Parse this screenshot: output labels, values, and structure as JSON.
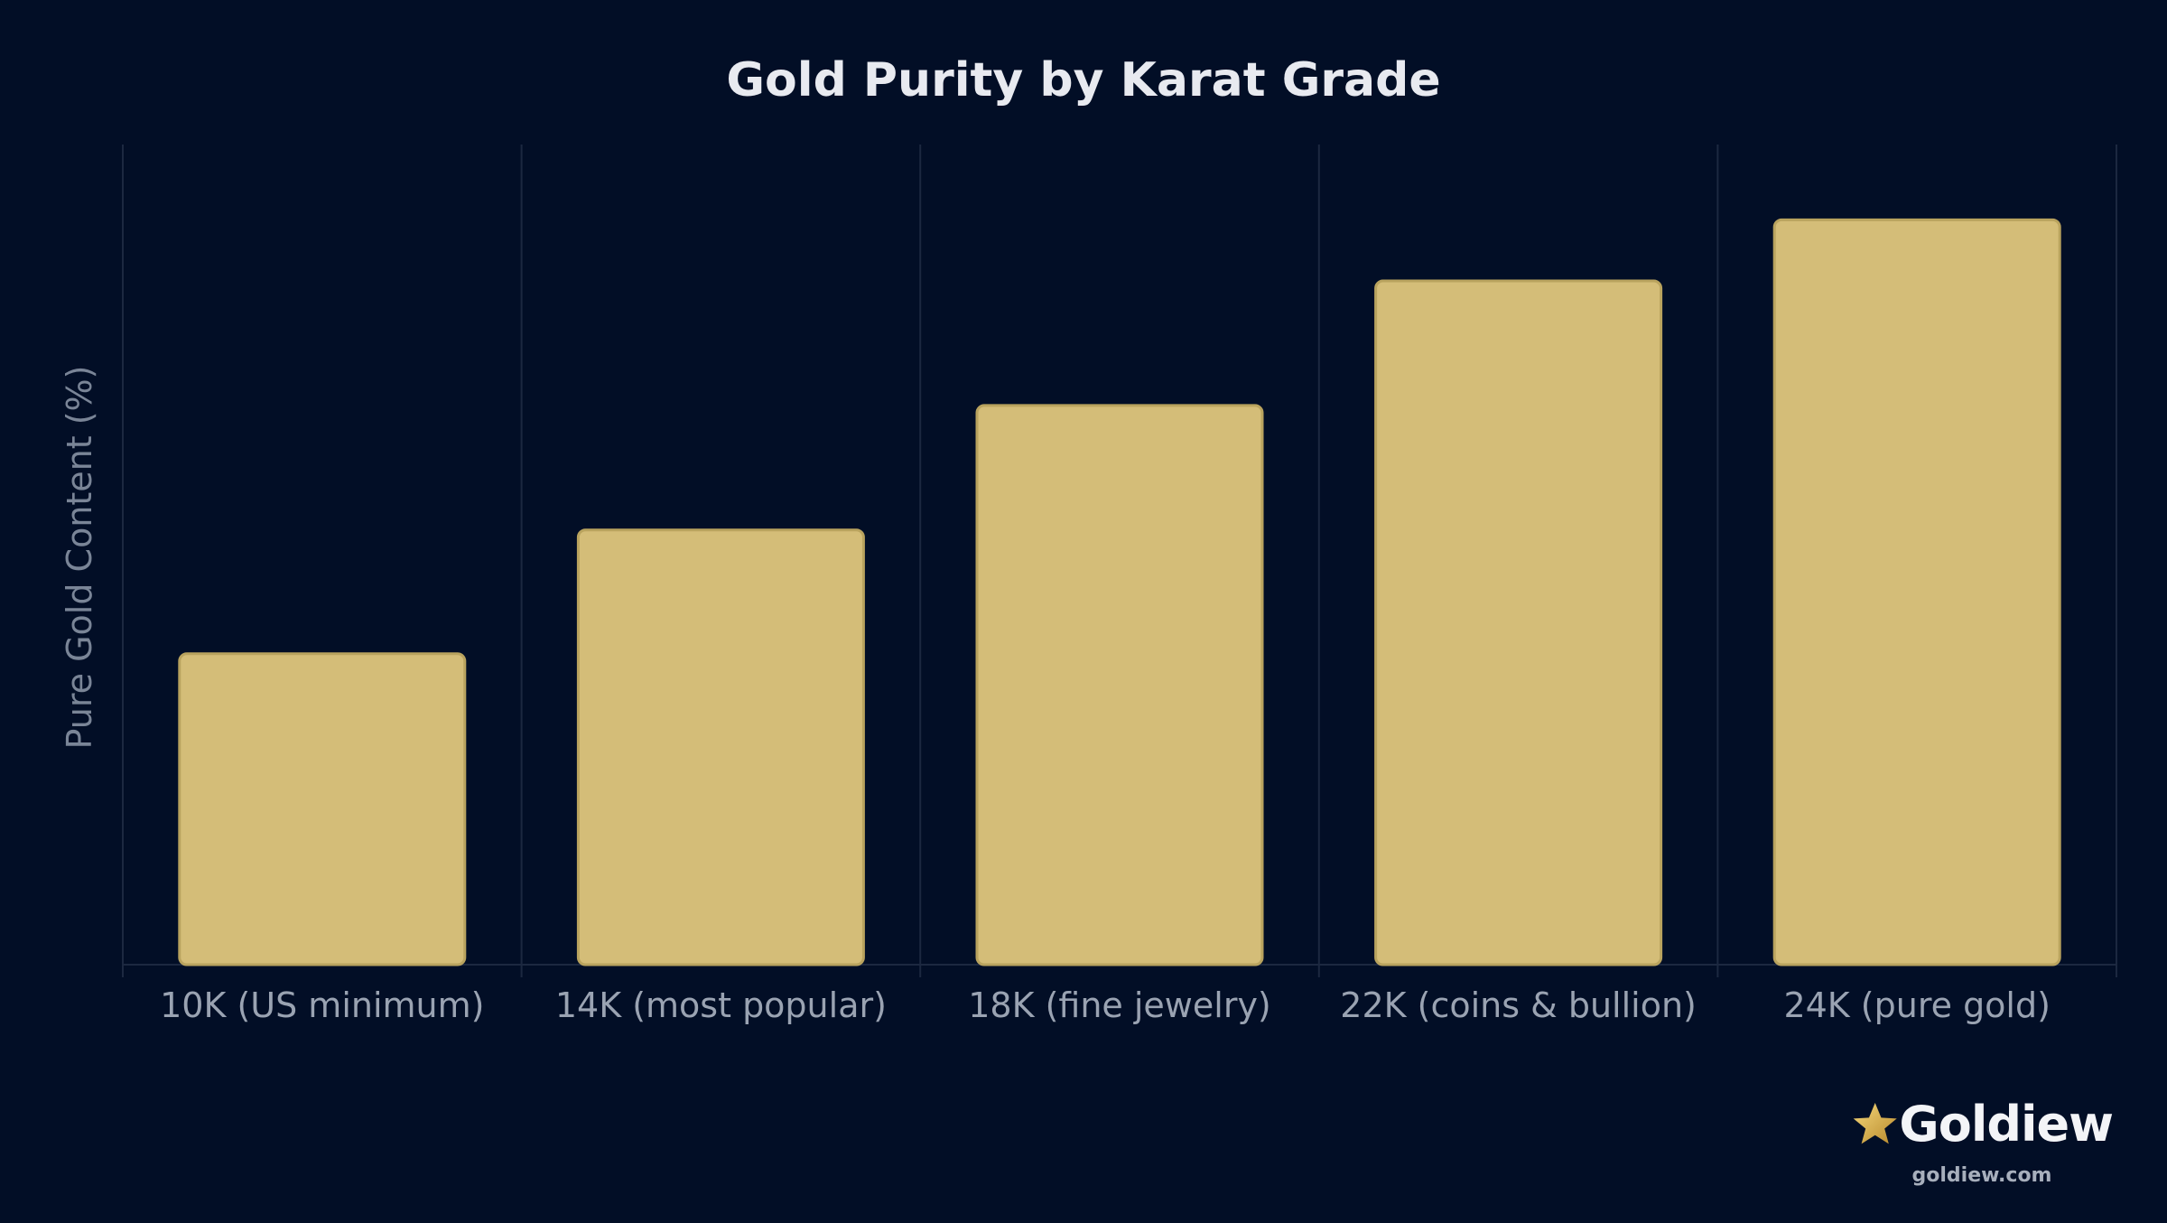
{
  "chart_data": {
    "type": "bar",
    "title": "Gold Purity by Karat Grade",
    "xlabel": "",
    "ylabel": "Pure Gold Content (%)",
    "categories": [
      "10K (US minimum)",
      "14K (most popular)",
      "18K (fine jewelry)",
      "22K (coins & bullion)",
      "24K (pure gold)"
    ],
    "values": [
      41.7,
      58.3,
      75.0,
      91.7,
      99.9
    ],
    "ylim": [
      0,
      110
    ],
    "grid": true,
    "bar_color": "#d4bd78"
  },
  "brand": {
    "name": "Goldiew",
    "url": "goldiew.com",
    "icon": "star-icon"
  },
  "colors": {
    "background": "#020e26",
    "bar": "#d4bd78",
    "accent_gold": "#d4af37"
  }
}
